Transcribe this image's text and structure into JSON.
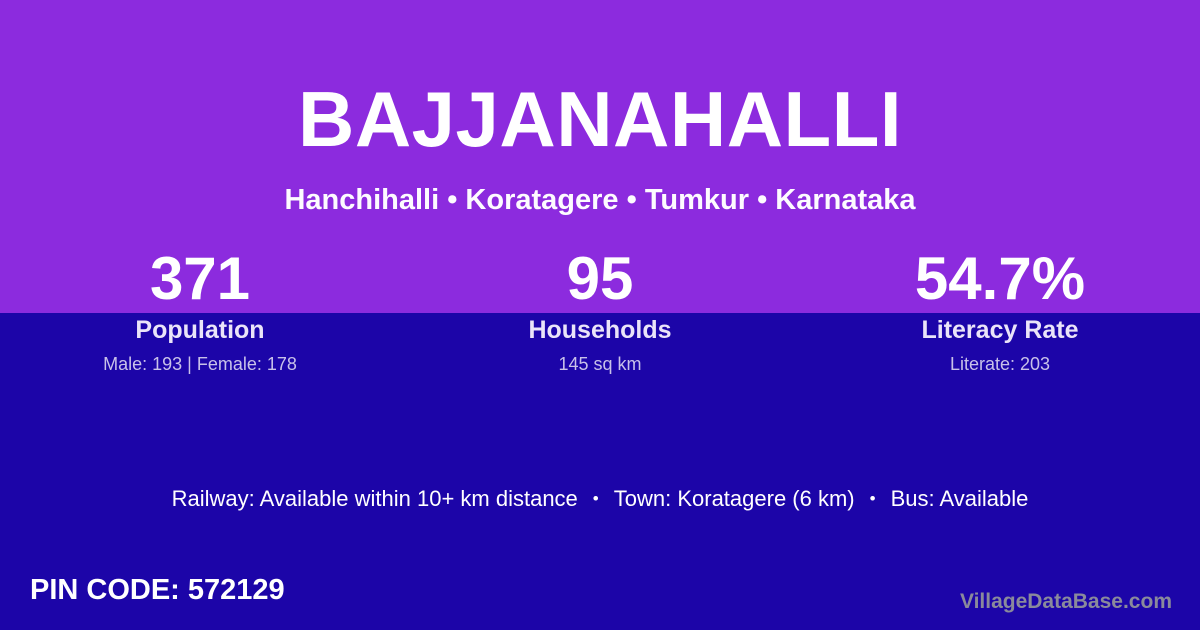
{
  "colors": {
    "top_bg": "#8C2BDE",
    "bottom_bg": "#1C05A8",
    "text_primary": "#FFFFFF",
    "text_muted": "#C8C1E9",
    "watermark_gray": "#8A8A9B"
  },
  "header": {
    "title": "BAJJANAHALLI",
    "subtitle": "Hanchihalli • Koratagere • Tumkur • Karnataka"
  },
  "stats": [
    {
      "value": "371",
      "label": "Population",
      "detail": "Male: 193 | Female: 178"
    },
    {
      "value": "95",
      "label": "Households",
      "detail": "145 sq km"
    },
    {
      "value": "54.7%",
      "label": "Literacy Rate",
      "detail": "Literate: 203"
    }
  ],
  "transport": {
    "bullet": "•",
    "parts": [
      "Railway: Available within 10+ km distance",
      "Town: Koratagere (6 km)",
      "Bus: Available"
    ]
  },
  "footer": {
    "pin_label": "PIN CODE:",
    "pin_value": "572129",
    "watermark": "VillageDataBase.com"
  }
}
